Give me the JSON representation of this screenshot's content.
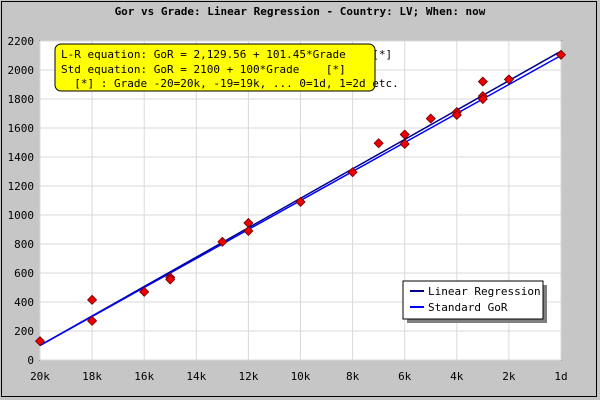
{
  "chart_data": {
    "type": "scatter",
    "title": "Gor vs Grade: Linear Regression - Country: LV; When: now",
    "xlabel": "",
    "ylabel": "",
    "x_tick_labels": [
      "20k",
      "18k",
      "16k",
      "14k",
      "12k",
      "10k",
      "8k",
      "6k",
      "4k",
      "2k",
      "1d"
    ],
    "x_tick_values": [
      -20,
      -18,
      -16,
      -14,
      -12,
      -10,
      -8,
      -6,
      -4,
      -2,
      0
    ],
    "xlim": [
      -20,
      0
    ],
    "ylim": [
      0,
      2200
    ],
    "y_ticks": [
      0,
      200,
      400,
      600,
      800,
      1000,
      1200,
      1400,
      1600,
      1800,
      2000,
      2200
    ],
    "grid": true,
    "annotation_lines": [
      "L-R equation: GoR = 2,129.56 + 101.45*Grade    [*]",
      "Std equation: GoR = 2100 + 100*Grade    [*]",
      "  [*] : Grade -20=20k, -19=19k, ... 0=1d, 1=2d etc."
    ],
    "points": [
      {
        "x": -20,
        "y": 130
      },
      {
        "x": -18,
        "y": 415
      },
      {
        "x": -18,
        "y": 270
      },
      {
        "x": -16,
        "y": 470
      },
      {
        "x": -15,
        "y": 570
      },
      {
        "x": -15,
        "y": 555
      },
      {
        "x": -13,
        "y": 815
      },
      {
        "x": -12,
        "y": 945
      },
      {
        "x": -12,
        "y": 890
      },
      {
        "x": -10,
        "y": 1090
      },
      {
        "x": -8,
        "y": 1295
      },
      {
        "x": -7,
        "y": 1495
      },
      {
        "x": -6,
        "y": 1555
      },
      {
        "x": -6,
        "y": 1490
      },
      {
        "x": -5,
        "y": 1665
      },
      {
        "x": -4,
        "y": 1710
      },
      {
        "x": -4,
        "y": 1690
      },
      {
        "x": -3,
        "y": 1920
      },
      {
        "x": -3,
        "y": 1820
      },
      {
        "x": -3,
        "y": 1800
      },
      {
        "x": -2,
        "y": 1935
      },
      {
        "x": 0,
        "y": 2105
      }
    ],
    "series": [
      {
        "name": "Linear Regression",
        "intercept": 2129.56,
        "slope": 101.45,
        "color": "#00008b"
      },
      {
        "name": "Standard GoR",
        "intercept": 2100,
        "slope": 100,
        "color": "#0000ff"
      }
    ],
    "legend_position": "bottom-right",
    "colors": {
      "point_fill": "#ee0000",
      "point_stroke": "#660000",
      "annotation_bg": "#ffff00",
      "plot_bg": "#ffffff",
      "outer_bg": "#c6c6c6"
    }
  }
}
